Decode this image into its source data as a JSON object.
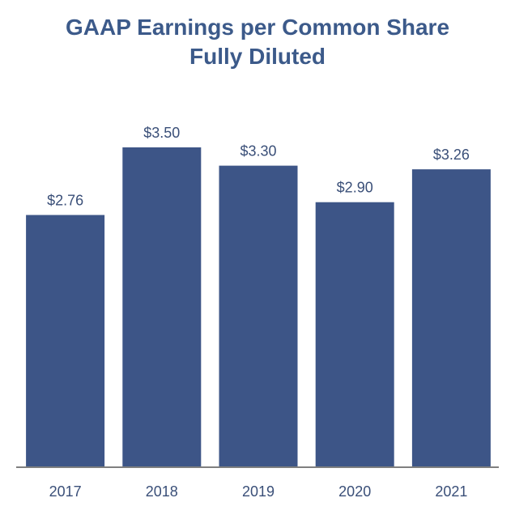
{
  "chart_data": {
    "type": "bar",
    "title": "GAAP Earnings per Common Share",
    "subtitle": "Fully Diluted",
    "categories": [
      "2017",
      "2018",
      "2019",
      "2020",
      "2021"
    ],
    "values": [
      2.76,
      3.5,
      3.3,
      2.9,
      3.26
    ],
    "data_labels": [
      "$2.76",
      "$3.50",
      "$3.30",
      "$2.90",
      "$3.26"
    ],
    "xlabel": "",
    "ylabel": "",
    "ylim": [
      0,
      3.5
    ],
    "grid": false,
    "bar_color": "#3d5587"
  }
}
